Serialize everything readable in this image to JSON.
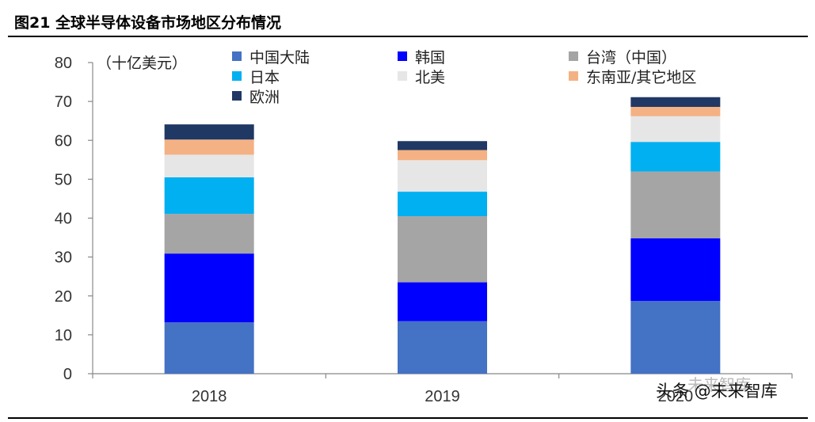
{
  "figure": {
    "title": "图21 全球半导体设备市场地区分布情况",
    "watermark_primary": "头条 @未来智库",
    "watermark_secondary": "未来智库"
  },
  "chart_data": {
    "type": "bar",
    "stacked": true,
    "unit_label": "（十亿美元）",
    "categories": [
      "2018",
      "2019",
      "2020"
    ],
    "ylim": [
      0,
      80
    ],
    "yticks": [
      0,
      10,
      20,
      30,
      40,
      50,
      60,
      70,
      80
    ],
    "grid": false,
    "legend_position": "top",
    "series": [
      {
        "name": "中国大陆",
        "color": "#4472C4",
        "values": [
          13.2,
          13.5,
          18.7
        ]
      },
      {
        "name": "韩国",
        "color": "#0000FF",
        "values": [
          17.7,
          10.0,
          16.1
        ]
      },
      {
        "name": "台湾（中国）",
        "color": "#A5A5A5",
        "values": [
          10.2,
          17.0,
          17.2
        ]
      },
      {
        "name": "日本",
        "color": "#00B0F0",
        "values": [
          9.4,
          6.3,
          7.6
        ]
      },
      {
        "name": "北美",
        "color": "#E7E6E6",
        "values": [
          5.8,
          8.1,
          6.6
        ]
      },
      {
        "name": "东南亚/其它地区",
        "color": "#F4B183",
        "values": [
          3.9,
          2.6,
          2.4
        ]
      },
      {
        "name": "欧洲",
        "color": "#203864",
        "values": [
          3.9,
          2.3,
          2.5
        ]
      }
    ]
  }
}
